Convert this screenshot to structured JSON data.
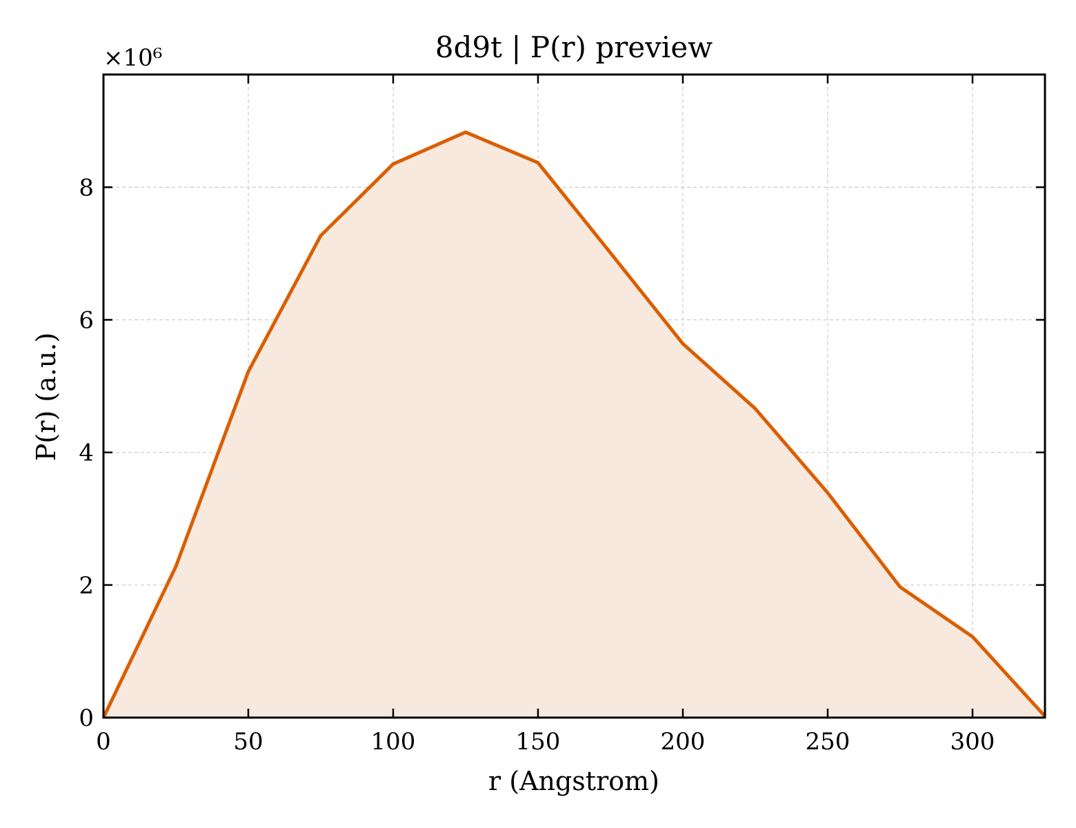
{
  "chart_data": {
    "type": "area",
    "title": "8d9t | P(r) preview",
    "xlabel": "r (Angstrom)",
    "ylabel": "P(r) (a.u.)",
    "y_offset_label": "×10⁶",
    "x": [
      0,
      25,
      50,
      75,
      100,
      125,
      150,
      175,
      200,
      225,
      250,
      275,
      300,
      325
    ],
    "y": [
      0,
      2.28,
      5.22,
      7.27,
      8.35,
      8.83,
      8.37,
      7.01,
      5.64,
      4.66,
      3.39,
      1.97,
      1.22,
      0.02
    ],
    "xlim": [
      0,
      325
    ],
    "ylim": [
      0,
      9.7
    ],
    "xticks": [
      0,
      50,
      100,
      150,
      200,
      250,
      300
    ],
    "xtick_labels": [
      "0",
      "50",
      "100",
      "150",
      "200",
      "250",
      "300"
    ],
    "yticks": [
      0,
      2,
      4,
      6,
      8
    ],
    "ytick_labels": [
      "0",
      "2",
      "4",
      "6",
      "8"
    ],
    "grid": true,
    "line_color": "#d95f02",
    "fill_color": "#f8e9df"
  }
}
